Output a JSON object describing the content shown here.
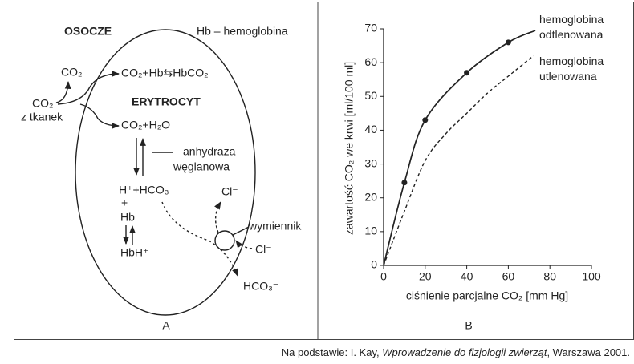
{
  "panel_a": {
    "plasma": "OSOCZE",
    "legend": "Hb – hemoglobina",
    "co2_out": "CO₂",
    "co2_in": "CO₂",
    "from_tissues": "z tkanek",
    "reaction_hb": "CO₂+Hb⇆HbCO₂",
    "cell": "ERYTROCYT",
    "reaction_water": "CO₂+H₂O",
    "enzyme": [
      "anhydraza",
      "węglanowa"
    ],
    "ions": "H⁺+HCO₃⁻",
    "plus": "+",
    "hb": "Hb",
    "hbh": "HbH⁺",
    "cl_out": "Cl⁻",
    "exchanger": "wymiennik",
    "cl_in": "Cl⁻",
    "hco3": "HCO₃⁻",
    "label": "A"
  },
  "chart_data": {
    "type": "line",
    "panel_label": "B",
    "x_label": "ciśnienie parcjalne CO₂ [mm Hg]",
    "y_label": "zawartość CO₂ we krwi [ml/100 ml]",
    "xlim": [
      0,
      100
    ],
    "ylim": [
      0,
      70
    ],
    "xticks": [
      0,
      20,
      40,
      60,
      80,
      100
    ],
    "yticks": [
      0,
      10,
      20,
      30,
      40,
      50,
      60,
      70
    ],
    "series": [
      {
        "name": "hemoglobina odtlenowana",
        "color": "#222222",
        "dashed": false,
        "x": [
          0,
          10,
          20,
          40,
          60,
          73
        ],
        "values": [
          0,
          24.5,
          43,
          57,
          66,
          69.5
        ],
        "marker": [
          false,
          true,
          true,
          true,
          true,
          false
        ]
      },
      {
        "name": "hemoglobina utlenowana",
        "color": "#222222",
        "dashed": true,
        "x": [
          0,
          10,
          20,
          30,
          40,
          50,
          60,
          72
        ],
        "values": [
          0,
          16,
          31,
          39,
          45,
          51,
          56,
          62
        ]
      }
    ]
  },
  "source": [
    "Na podstawie: I. Kay, ",
    "Wprowadzenie do fizjologii zwierząt",
    ", Warszawa 2001."
  ]
}
